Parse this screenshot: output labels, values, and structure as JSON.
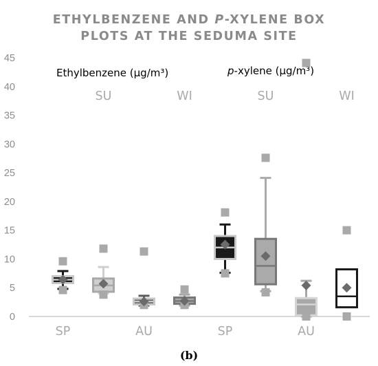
{
  "chart_data": {
    "type": "box",
    "title_lines": [
      "ETHYLBENZENE AND P-XYLENE BOX",
      "PLOTS AT THE SEDUMA SITE"
    ],
    "title_italic_word": "P",
    "ylim": [
      0,
      45
    ],
    "y_ticks": [
      "0",
      "5",
      "10",
      "15",
      "20",
      "25",
      "30",
      "35",
      "40",
      "45"
    ],
    "group_labels": {
      "ethylbenzene": "Ethylbenzene (µg/m³)",
      "pxylene_italic": "p",
      "pxylene_rest": "-xylene (µg/m³)"
    },
    "caption": "(b)",
    "series": [
      {
        "label": "SP",
        "label_position": "bottom",
        "box_color": "#1a1a1a",
        "edge_color": "#c8c8c8",
        "q1": 5.8,
        "median": 6.4,
        "q3": 7.0,
        "whisker_low": 4.8,
        "whisker_high": 7.9,
        "mean": 6.4,
        "outliers": [
          4.6,
          9.6
        ]
      },
      {
        "label": "SU",
        "label_position": "top",
        "box_color": "#cfcfcf",
        "edge_color": "#a8a8a8",
        "q1": 4.3,
        "median": 5.4,
        "q3": 6.6,
        "whisker_low": 4.0,
        "whisker_high": 8.6,
        "mean": 5.7,
        "outliers": [
          3.8,
          11.8
        ]
      },
      {
        "label": "AU",
        "label_position": "bottom",
        "box_color": "#5c5c5c",
        "edge_color": "#c8c8c8",
        "q1": 2.1,
        "median": 2.6,
        "q3": 3.1,
        "whisker_low": 1.9,
        "whisker_high": 3.6,
        "mean": 2.6,
        "outliers": [
          2.0,
          11.3
        ]
      },
      {
        "label": "WI",
        "label_position": "top",
        "box_color": "#a9a9a9",
        "edge_color": "#777777",
        "q1": 2.2,
        "median": 2.7,
        "q3": 3.3,
        "whisker_low": 1.9,
        "whisker_high": 3.8,
        "mean": 2.7,
        "outliers": [
          2.0,
          4.7
        ]
      },
      {
        "label": "SP",
        "label_position": "bottom",
        "box_color": "#1a1a1a",
        "edge_color": "#c8c8c8",
        "q1": 10.0,
        "median": 12.0,
        "q3": 14.0,
        "whisker_low": 7.6,
        "whisker_high": 16.0,
        "mean": 12.5,
        "outliers": [
          7.5,
          18.1
        ]
      },
      {
        "label": "SU",
        "label_position": "top",
        "box_color": "#aaaaaa",
        "edge_color": "#777777",
        "q1": 5.6,
        "median": 8.8,
        "q3": 13.5,
        "whisker_low": 4.4,
        "whisker_high": 24.1,
        "mean": 10.5,
        "outliers": [
          4.2,
          27.6
        ]
      },
      {
        "label": "AU",
        "label_position": "bottom",
        "box_color": "#a8a8a8",
        "edge_color": "#d6d6d6",
        "q1": 0.2,
        "median": 2.1,
        "q3": 3.2,
        "whisker_low": 0.0,
        "whisker_high": 6.2,
        "mean": 5.4,
        "outliers": [
          0.0,
          44.1
        ]
      },
      {
        "label": "WI",
        "label_position": "top",
        "box_color": "#ffffff",
        "edge_color": "#1a1a1a",
        "q1": 1.6,
        "median": 3.5,
        "q3": 8.2,
        "whisker_low": 0.2,
        "whisker_high": 14.9,
        "mean": 5.0,
        "outliers": [
          0.0,
          15.0
        ]
      }
    ]
  },
  "colors": {
    "outlier": "#a9a9a9",
    "mean_marker": "#6b6b6b",
    "axis": "#b0b0b0",
    "title": "#8a8a8a"
  }
}
